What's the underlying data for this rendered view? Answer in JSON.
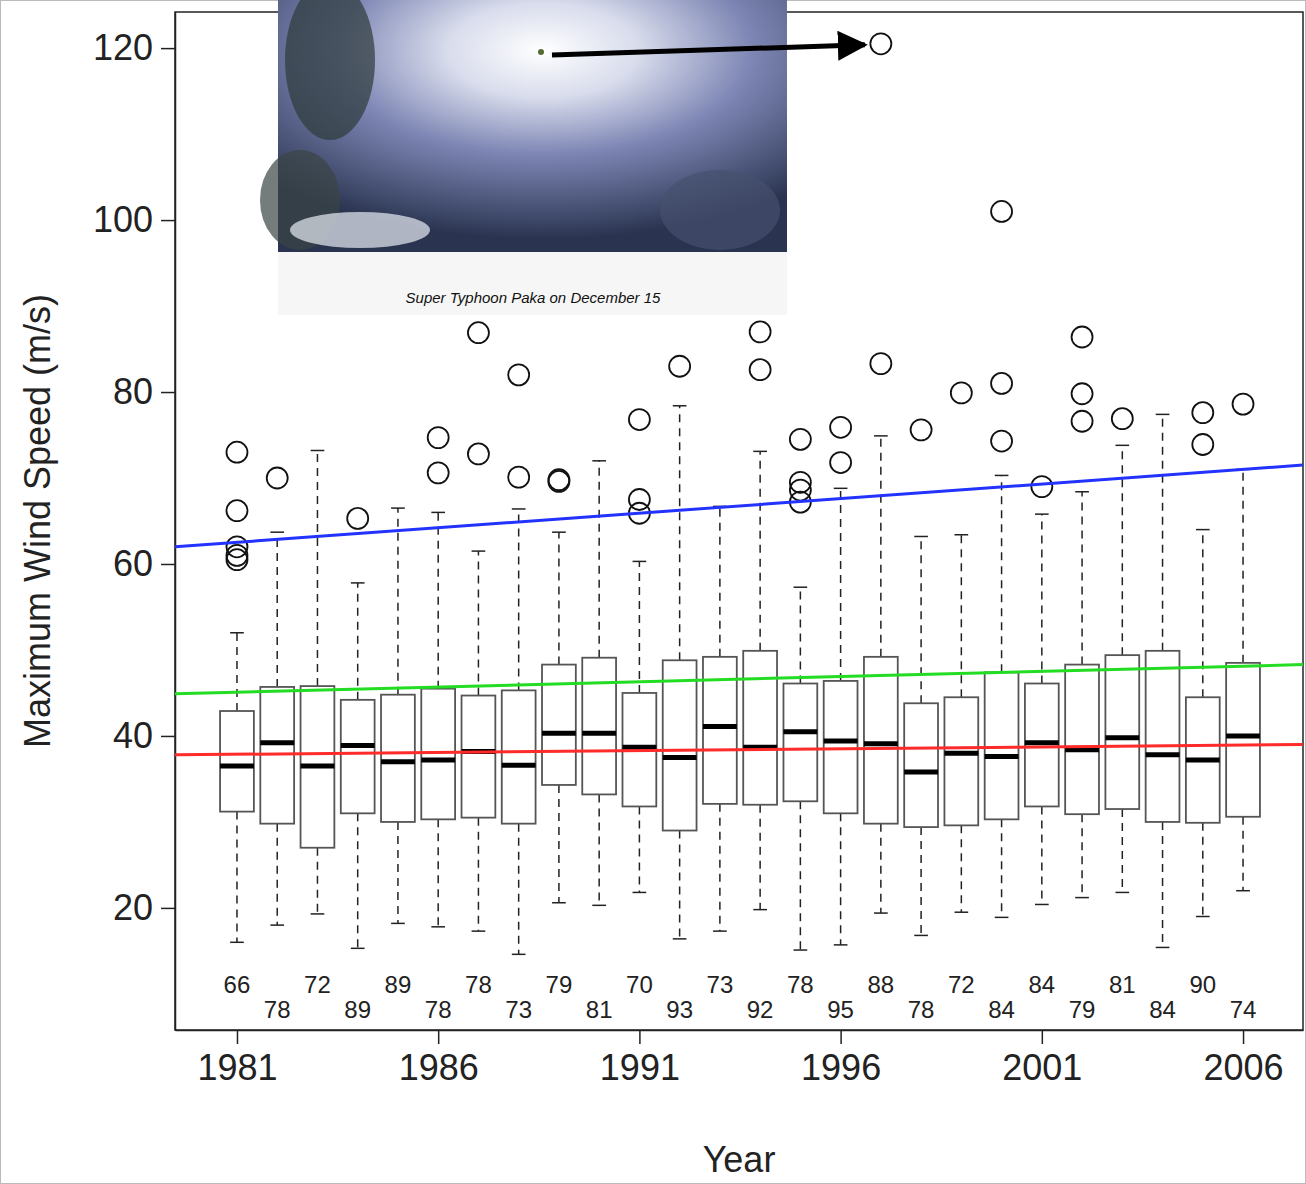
{
  "chart_data": {
    "type": "box",
    "x_label": "Year",
    "y_label": "Maximum Wind Speed (m/s)",
    "annotation": "Super Typhoon Paka on December 15",
    "x": [
      1981,
      1982,
      1983,
      1984,
      1985,
      1986,
      1987,
      1988,
      1989,
      1990,
      1991,
      1992,
      1993,
      1994,
      1995,
      1996,
      1997,
      1998,
      1999,
      2000,
      2001,
      2002,
      2003,
      2004,
      2005,
      2006
    ],
    "whisker_low": [
      16,
      18,
      19.3,
      15.3,
      18.2,
      17.8,
      17.3,
      14.6,
      20.6,
      20.3,
      21.8,
      16.4,
      17.3,
      19.8,
      15.1,
      15.7,
      19.4,
      16.8,
      19.5,
      18.9,
      20.4,
      21.2,
      21.8,
      15.4,
      19,
      22
    ],
    "q1": [
      31.2,
      29.8,
      27,
      31,
      30,
      30.3,
      30.5,
      29.8,
      34.3,
      33.2,
      31.8,
      29,
      32.1,
      32,
      32.4,
      31,
      29.8,
      29.4,
      29.6,
      30.3,
      31.8,
      30.9,
      31.5,
      30,
      29.9,
      30.6
    ],
    "median": [
      36.5,
      39.2,
      36.5,
      38.9,
      37,
      37.2,
      38.2,
      36.6,
      40.3,
      40.3,
      38.7,
      37.5,
      41.1,
      38.7,
      40.5,
      39.4,
      39.1,
      35.8,
      38,
      37.6,
      39.2,
      38.4,
      39.8,
      37.8,
      37.2,
      40
    ],
    "q3": [
      42.9,
      45.7,
      45.8,
      44.2,
      44.8,
      45.5,
      44.7,
      45.3,
      48.3,
      49.1,
      45,
      48.8,
      49.2,
      49.9,
      46.1,
      46.4,
      49.2,
      43.8,
      44.5,
      47.4,
      46.1,
      48.3,
      49.4,
      49.9,
      44.5,
      48.5
    ],
    "whisker_high": [
      52,
      63.7,
      73.2,
      57.8,
      66.5,
      66,
      61.5,
      66.4,
      63.7,
      72,
      60.3,
      78.4,
      66.7,
      73.1,
      57.3,
      68.8,
      74.9,
      63.2,
      63.4,
      70.3,
      65.8,
      68.4,
      73.8,
      77.4,
      64,
      71
    ],
    "outliers": [
      [
        73,
        66.2,
        62,
        61,
        60.5
      ],
      [
        70
      ],
      [],
      [
        65.3
      ],
      [],
      [
        74.7,
        70.6
      ],
      [
        86.9,
        72.8
      ],
      [
        82,
        70.1
      ],
      [
        69.8,
        69.6
      ],
      [],
      [
        76.8,
        67.5,
        65.9
      ],
      [
        83
      ],
      [],
      [
        87,
        82.6
      ],
      [
        74.5,
        69.5,
        68.6,
        67.2
      ],
      [
        75.9,
        71.8
      ],
      [
        120.5,
        83.3
      ],
      [
        75.6
      ],
      [
        79.9
      ],
      [
        101,
        81,
        74.3
      ],
      [
        69
      ],
      [
        86.4,
        79.8,
        76.6
      ],
      [
        76.9
      ],
      [],
      [
        77.6,
        73.9
      ],
      [
        78.6
      ]
    ],
    "counts": [
      66,
      78,
      72,
      89,
      89,
      78,
      78,
      73,
      79,
      81,
      70,
      93,
      73,
      92,
      78,
      95,
      88,
      78,
      72,
      84,
      84,
      79,
      81,
      84,
      90,
      74
    ],
    "trend_lines": [
      {
        "color": "#2233ff",
        "x": [
          1979.46,
          2007.49
        ],
        "values": [
          62,
          71.5
        ]
      },
      {
        "color": "#22dd22",
        "x": [
          1979.46,
          2007.49
        ],
        "values": [
          44.9,
          48.3
        ]
      },
      {
        "color": "#ff2a2a",
        "x": [
          1979.46,
          2007.49
        ],
        "values": [
          37.8,
          39.0
        ]
      }
    ],
    "xlim": [
      1979.46,
      2007.49
    ],
    "ylim": [
      5.8,
      124.2
    ],
    "xticks": [
      1981,
      1986,
      1991,
      1996,
      2001,
      2006
    ],
    "yticks": [
      20,
      40,
      60,
      80,
      100,
      120
    ]
  }
}
